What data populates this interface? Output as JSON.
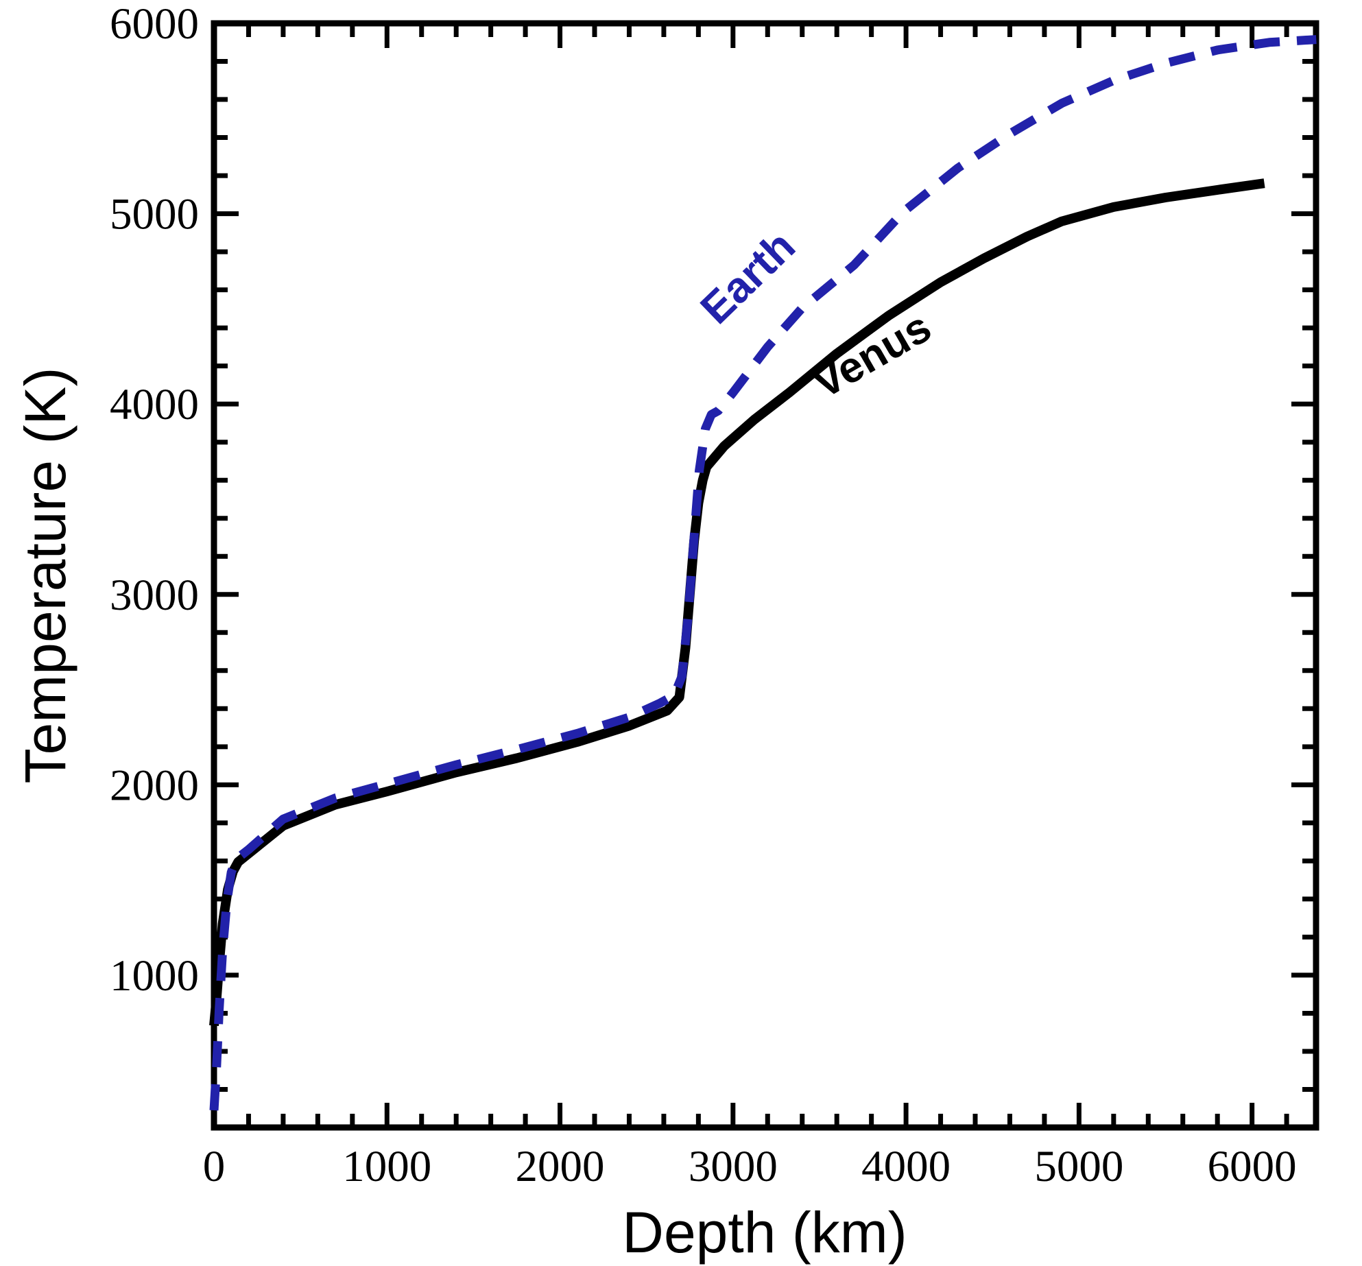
{
  "figure": {
    "background_color": "#ffffff",
    "frame_color": "#000000"
  },
  "chart_data": {
    "type": "line",
    "title": "",
    "xlabel": "Depth (km)",
    "ylabel": "Temperature (K)",
    "xlim": [
      0,
      6370
    ],
    "ylim": [
      200,
      6000
    ],
    "x_major_ticks": [
      0,
      1000,
      2000,
      3000,
      4000,
      5000,
      6000
    ],
    "x_minor_tick_interval": 200,
    "y_major_ticks": [
      1000,
      2000,
      3000,
      4000,
      5000,
      6000
    ],
    "y_minor_tick_interval": 200,
    "grid": false,
    "legend_position": "inline-annotations",
    "series": [
      {
        "name": "Venus",
        "color": "#000000",
        "style": "solid",
        "line_width": 14,
        "points": [
          [
            0,
            735
          ],
          [
            15,
            880
          ],
          [
            30,
            1060
          ],
          [
            50,
            1270
          ],
          [
            80,
            1450
          ],
          [
            110,
            1545
          ],
          [
            140,
            1595
          ],
          [
            400,
            1785
          ],
          [
            700,
            1895
          ],
          [
            1000,
            1965
          ],
          [
            1400,
            2065
          ],
          [
            1750,
            2140
          ],
          [
            2100,
            2225
          ],
          [
            2400,
            2310
          ],
          [
            2620,
            2390
          ],
          [
            2690,
            2460
          ],
          [
            2725,
            2720
          ],
          [
            2750,
            3000
          ],
          [
            2775,
            3280
          ],
          [
            2800,
            3480
          ],
          [
            2825,
            3600
          ],
          [
            2847,
            3670
          ],
          [
            2950,
            3780
          ],
          [
            3125,
            3920
          ],
          [
            3325,
            4060
          ],
          [
            3600,
            4265
          ],
          [
            3900,
            4465
          ],
          [
            4200,
            4640
          ],
          [
            4450,
            4765
          ],
          [
            4700,
            4880
          ],
          [
            4900,
            4960
          ],
          [
            5200,
            5035
          ],
          [
            5500,
            5085
          ],
          [
            5800,
            5125
          ],
          [
            6071,
            5160
          ]
        ]
      },
      {
        "name": "Earth",
        "color": "#2222aa",
        "style": "dashed",
        "dash_pattern": [
          38,
          25
        ],
        "line_width": 13,
        "points": [
          [
            0,
            290
          ],
          [
            15,
            520
          ],
          [
            30,
            820
          ],
          [
            50,
            1130
          ],
          [
            75,
            1390
          ],
          [
            100,
            1540
          ],
          [
            130,
            1610
          ],
          [
            200,
            1660
          ],
          [
            400,
            1820
          ],
          [
            700,
            1930
          ],
          [
            1000,
            2005
          ],
          [
            1400,
            2105
          ],
          [
            1750,
            2185
          ],
          [
            2100,
            2270
          ],
          [
            2400,
            2355
          ],
          [
            2580,
            2430
          ],
          [
            2660,
            2470
          ],
          [
            2705,
            2570
          ],
          [
            2740,
            2880
          ],
          [
            2775,
            3300
          ],
          [
            2805,
            3650
          ],
          [
            2840,
            3870
          ],
          [
            2875,
            3945
          ],
          [
            2915,
            3965
          ],
          [
            3000,
            4060
          ],
          [
            3200,
            4300
          ],
          [
            3400,
            4505
          ],
          [
            3700,
            4730
          ],
          [
            3985,
            5010
          ],
          [
            4300,
            5240
          ],
          [
            4600,
            5420
          ],
          [
            4900,
            5580
          ],
          [
            5200,
            5700
          ],
          [
            5500,
            5790
          ],
          [
            5800,
            5860
          ],
          [
            6100,
            5900
          ],
          [
            6371,
            5915
          ]
        ]
      }
    ],
    "annotations": [
      {
        "text": "Earth",
        "x": 3144,
        "y": 4610,
        "rotation_deg": -44,
        "color": "#2222aa",
        "bold": true
      },
      {
        "text": "Venus",
        "x": 3845,
        "y": 4190,
        "rotation_deg": -30,
        "color": "#000000",
        "bold": true
      }
    ]
  }
}
